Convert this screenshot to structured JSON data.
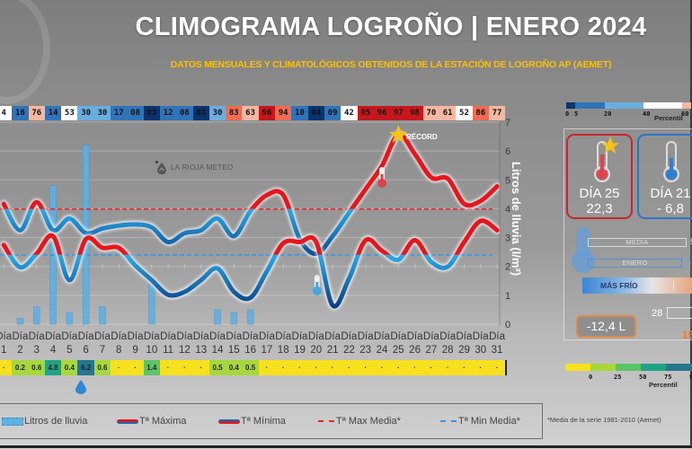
{
  "header": {
    "title": "CLIMOGRAMA LOGROÑO | ENERO 2024",
    "subtitle": "DATOS MENSUALES Y CLIMATOLÓGICOS OBTENIDOS DE LA ESTACIÓN DE LOGROÑO AP (AEMET)"
  },
  "watermark": "LA RIOJA METEO",
  "temp_percentiles": {
    "values": [
      "4",
      "16",
      "76",
      "14",
      "53",
      "30",
      "30",
      "17",
      "08",
      "03",
      "12",
      "08",
      "03",
      "30",
      "83",
      "63",
      "96",
      "94",
      "10",
      "04",
      "09",
      "42",
      "95",
      "96",
      "97",
      "98",
      "70",
      "61",
      "52",
      "86",
      "77"
    ],
    "colors": [
      "#ffffff",
      "#2f74b8",
      "#f6b7a0",
      "#2f74b8",
      "#ffffff",
      "#6aaee0",
      "#6aaee0",
      "#2f74b8",
      "#2f74b8",
      "#0b336e",
      "#2f74b8",
      "#2f74b8",
      "#0b336e",
      "#6aaee0",
      "#f26a4f",
      "#f6b7a0",
      "#c8161d",
      "#f26a4f",
      "#2f74b8",
      "#0b336e",
      "#2f74b8",
      "#ffffff",
      "#c8161d",
      "#c8161d",
      "#c8161d",
      "#c8161d",
      "#f6b7a0",
      "#f6b7a0",
      "#ffffff",
      "#f26a4f",
      "#f6b7a0"
    ]
  },
  "rain_daily": {
    "labels": [
      "-",
      "0.2",
      "0.6",
      "4.8",
      "0.4",
      "6.2",
      "0.6",
      "-",
      "-",
      "1.4",
      "-",
      "-",
      "-",
      "0.5",
      "0.4",
      "0.5",
      "-",
      "-",
      "-",
      "-",
      "-",
      "-",
      "-",
      "-",
      "-",
      "-",
      "-",
      "-",
      "-",
      "-",
      "-"
    ],
    "colors": [
      "#f7e11e",
      "#a6d83b",
      "#a6d83b",
      "#20a287",
      "#a6d83b",
      "#26768d",
      "#a6d83b",
      "#f7e11e",
      "#f7e11e",
      "#5bc467",
      "#f7e11e",
      "#f7e11e",
      "#f7e11e",
      "#a6d83b",
      "#a6d83b",
      "#a6d83b",
      "#f7e11e",
      "#f7e11e",
      "#f7e11e",
      "#f7e11e",
      "#f7e11e",
      "#f7e11e",
      "#f7e11e",
      "#f7e11e",
      "#f7e11e",
      "#f7e11e",
      "#f7e11e",
      "#f7e11e",
      "#f7e11e",
      "#f7e11e",
      "#f7e11e"
    ]
  },
  "chart_data": {
    "type": "line",
    "title": "CLIMOGRAMA LOGROÑO | ENERO 2024",
    "x": [
      1,
      2,
      3,
      4,
      5,
      6,
      7,
      8,
      9,
      10,
      11,
      12,
      13,
      14,
      15,
      16,
      17,
      18,
      19,
      20,
      21,
      22,
      23,
      24,
      25,
      26,
      27,
      28,
      29,
      30,
      31
    ],
    "x_tick_labels": [
      "Día 1",
      "Día 2",
      "Día 3",
      "Día 4",
      "Día 5",
      "Día 6",
      "Día 7",
      "Día 8",
      "Día 9",
      "Día 10",
      "Día 11",
      "Día 12",
      "Día 13",
      "Día 14",
      "Día 15",
      "Día 16",
      "Día 17",
      "Día 18",
      "Día 19",
      "Día 20",
      "Día 21",
      "Día 22",
      "Día 23",
      "Día 24",
      "Día 25",
      "Día 26",
      "Día 27",
      "Día 28",
      "Día 29",
      "Día 30",
      "Día 31"
    ],
    "ylabel": "Litros de lluvia  (l/m²)",
    "ylim": [
      0,
      7
    ],
    "y_ticks": [
      0,
      1,
      2,
      3,
      4,
      5,
      6,
      7
    ],
    "grid": true,
    "legend_position": "bottom",
    "series": [
      {
        "name": "Litros de lluvia",
        "kind": "bar",
        "color": "#5fb0e3",
        "values": [
          0,
          0.2,
          0.6,
          4.8,
          0.4,
          6.2,
          0.6,
          0,
          0,
          1.4,
          0,
          0,
          0,
          0.5,
          0.4,
          0.5,
          0,
          0,
          0,
          0,
          0,
          0,
          0,
          0,
          0,
          0,
          0,
          0,
          0,
          0,
          0
        ]
      },
      {
        "name": "Tª Máxima",
        "kind": "line",
        "unit": "°C",
        "values": [
          10.5,
          6.0,
          10.8,
          6.0,
          8.0,
          5.5,
          6.3,
          6.8,
          7.0,
          6.5,
          4.0,
          5.5,
          6.0,
          8.0,
          5.0,
          9.3,
          12.0,
          12.0,
          4.5,
          2.0,
          5.0,
          9.0,
          13.0,
          17.0,
          22.3,
          19.0,
          15.0,
          14.8,
          10.5,
          11.0,
          13.5
        ]
      },
      {
        "name": "Tª Mínima",
        "kind": "line",
        "unit": "°C",
        "values": [
          3.5,
          -0.3,
          2.0,
          5.0,
          -2.5,
          4.5,
          3.0,
          3.0,
          0.0,
          -2.5,
          -5.0,
          -4.5,
          -2.5,
          -0.5,
          -4.5,
          -5.5,
          -1.0,
          3.8,
          4.0,
          4.0,
          -6.8,
          -2.2,
          4.3,
          2.5,
          1.0,
          4.3,
          0.6,
          -0.2,
          4.0,
          7.6,
          6.0
        ]
      },
      {
        "name": "Tª Max Media*",
        "kind": "dashed",
        "unit": "°C",
        "color": "#d9262b",
        "value": 9.6
      },
      {
        "name": "Tª Min Media*",
        "kind": "dashed",
        "unit": "°C",
        "color": "#3c92dd",
        "value": 1.8
      }
    ],
    "annotations": [
      {
        "text": "RÉCORD",
        "day": 25,
        "series": "Tª Máxima"
      },
      {
        "icon": "thermometer-hot",
        "day": 24
      },
      {
        "icon": "thermometer-cold",
        "day": 20
      }
    ]
  },
  "legend": {
    "items": [
      "Litros de lluvia",
      "Tª Máxima",
      "Tª Mínima",
      "Tª Max Media*",
      "Tª Min Media*"
    ],
    "footnote": "*Media de la serie 1981-2010 (Aemet)"
  },
  "side_panel": {
    "scale_top": {
      "ticks": [
        "0",
        "5",
        "20",
        "40",
        "60"
      ],
      "title": "Percentil",
      "colors": [
        "#0b336e",
        "#2f74b8",
        "#6aaee0",
        "#ffffff",
        "#f6b7a0"
      ]
    },
    "max_card": {
      "day": "DÍA 25",
      "value": "22,3",
      "border": "#c8262b"
    },
    "min_card": {
      "day": "DÍA 21",
      "value": "- 6,8",
      "border": "#2f74c8"
    },
    "bars": {
      "media_label": "MEDIA",
      "media_value": "5",
      "month_label": "ENERO",
      "month_value": "5"
    },
    "colder_label": "MÁS FRÍO",
    "rain_diff": "-12,4 L",
    "rain_days_value": "28",
    "orange_value": "15",
    "scale_bottom": {
      "ticks": [
        "0",
        "25",
        "50",
        "75",
        "9"
      ],
      "title": "Percentil",
      "colors": [
        "#f7e11e",
        "#a6d83b",
        "#5bc467",
        "#20a287",
        "#26768d"
      ]
    }
  }
}
